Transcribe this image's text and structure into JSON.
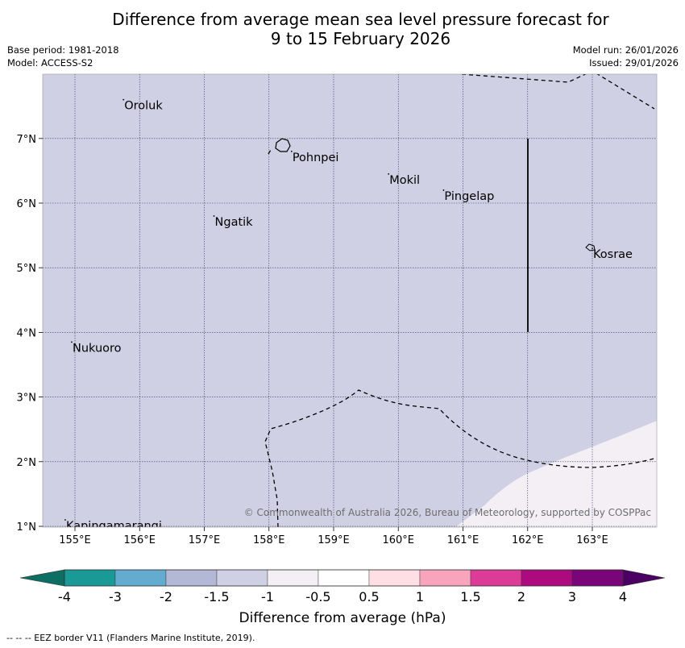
{
  "title": {
    "line1": "Difference from average mean sea level pressure forecast for",
    "line2": "9 to 15 February 2026"
  },
  "meta": {
    "base_period": "Base period: 1981-2018",
    "model": "Model: ACCESS-S2",
    "model_run": "Model run: 26/01/2026",
    "issued": "Issued: 29/01/2026"
  },
  "map": {
    "x_ticks": [
      {
        "lon": 155,
        "label": "155°E"
      },
      {
        "lon": 156,
        "label": "156°E"
      },
      {
        "lon": 157,
        "label": "157°E"
      },
      {
        "lon": 158,
        "label": "158°E"
      },
      {
        "lon": 159,
        "label": "159°E"
      },
      {
        "lon": 160,
        "label": "160°E"
      },
      {
        "lon": 161,
        "label": "161°E"
      },
      {
        "lon": 162,
        "label": "162°E"
      },
      {
        "lon": 163,
        "label": "163°E"
      }
    ],
    "y_ticks": [
      {
        "lat": 1,
        "label": "1°N"
      },
      {
        "lat": 2,
        "label": "2°N"
      },
      {
        "lat": 3,
        "label": "3°N"
      },
      {
        "lat": 4,
        "label": "4°N"
      },
      {
        "lat": 5,
        "label": "5°N"
      },
      {
        "lat": 6,
        "label": "6°N"
      },
      {
        "lat": 7,
        "label": "7°N"
      }
    ],
    "places": [
      {
        "name": "Oroluk",
        "lon": 155.75,
        "lat": 7.6
      },
      {
        "name": "Pohnpei",
        "lon": 158.35,
        "lat": 6.8
      },
      {
        "name": "Mokil",
        "lon": 159.85,
        "lat": 6.45
      },
      {
        "name": "Pingelap",
        "lon": 160.7,
        "lat": 6.2
      },
      {
        "name": "Ngatik",
        "lon": 157.15,
        "lat": 5.8
      },
      {
        "name": "Kosrae",
        "lon": 163.0,
        "lat": 5.3
      },
      {
        "name": "Nukuoro",
        "lon": 154.95,
        "lat": 3.85
      },
      {
        "name": "Kapingamarangi",
        "lon": 154.85,
        "lat": 1.1
      }
    ],
    "copyright": "© Commonwealth of Australia 2026, Bureau of Meteorology, supported by COSPPac"
  },
  "colorbar": {
    "colors": [
      "#1a9a96",
      "#64abd0",
      "#b2b8d6",
      "#d0d0e4",
      "#f3eff5",
      "#ffffff",
      "#fedfe3",
      "#f8a4bc",
      "#dc3b98",
      "#ae0a80",
      "#7a0479"
    ],
    "low_color": "#0d6f63",
    "high_color": "#4b0063",
    "tick_labels": [
      "-4",
      "-3",
      "-2",
      "-1.5",
      "-1",
      "-0.5",
      "0.5",
      "1",
      "1.5",
      "2",
      "3",
      "4"
    ],
    "label": "Difference from average (hPa)"
  },
  "fill_colors": {
    "main": "#cfd0e3",
    "light": "#f3eff5"
  },
  "footer": "--  --  -- EEZ border V11 (Flanders Marine Institute, 2019)."
}
